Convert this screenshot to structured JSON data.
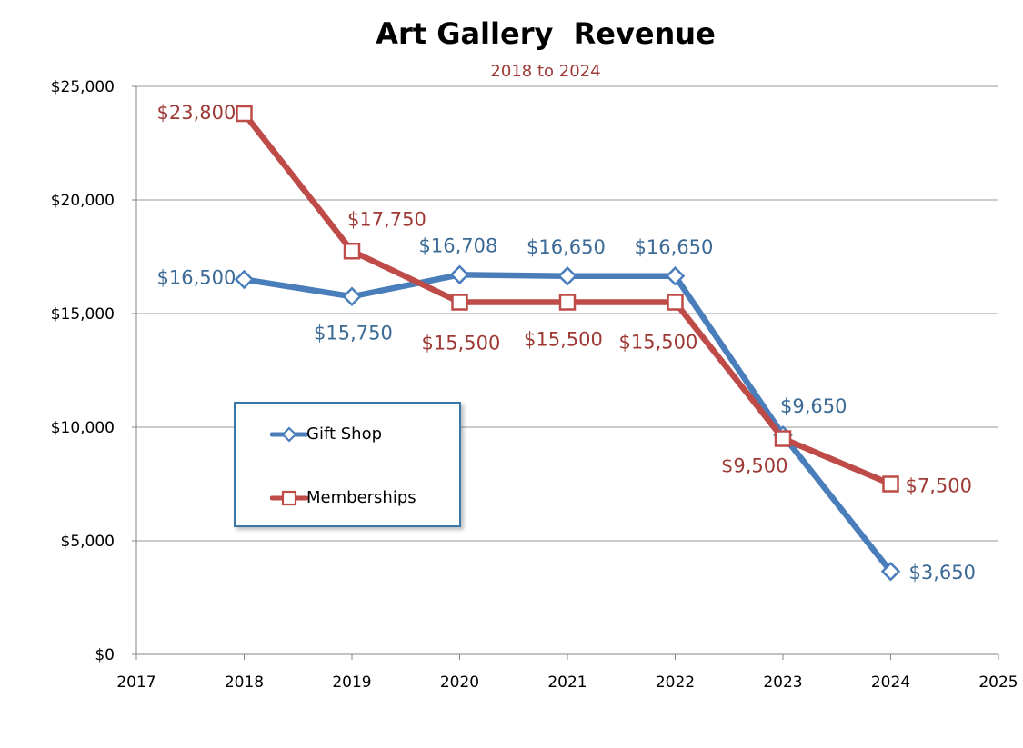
{
  "chart_data": {
    "type": "line",
    "title": "Art Gallery  Revenue",
    "subtitle": "2018 to 2024",
    "x": [
      2018,
      2019,
      2020,
      2021,
      2022,
      2023,
      2024
    ],
    "xlim": [
      2017,
      2025
    ],
    "xticks": [
      "2017",
      "2018",
      "2019",
      "2020",
      "2021",
      "2022",
      "2023",
      "2024",
      "2025"
    ],
    "ylim": [
      0,
      25000
    ],
    "yticks": [
      "$0",
      "$5,000",
      "$10,000",
      "$15,000",
      "$20,000",
      "$25,000"
    ],
    "grid": true,
    "legend_position": "left-center",
    "series": [
      {
        "name": "Gift Shop",
        "color": "#4a7ebb",
        "label_color": "#3b6a96",
        "marker": "diamond",
        "values": [
          16500,
          15750,
          16708,
          16650,
          16650,
          9650,
          3650
        ],
        "labels": [
          "$16,500",
          "$15,750",
          "$16,708",
          "$16,650",
          "$16,650",
          "$9,650",
          "$3,650"
        ]
      },
      {
        "name": "Memberships",
        "color": "#be4b48",
        "label_color": "#9e3a36",
        "marker": "square",
        "values": [
          23800,
          17750,
          15500,
          15500,
          15500,
          9500,
          7500
        ],
        "labels": [
          "$23,800",
          "$17,750",
          "$15,500",
          "$15,500",
          "$15,500",
          "$9,500",
          "$7,500"
        ]
      }
    ]
  }
}
